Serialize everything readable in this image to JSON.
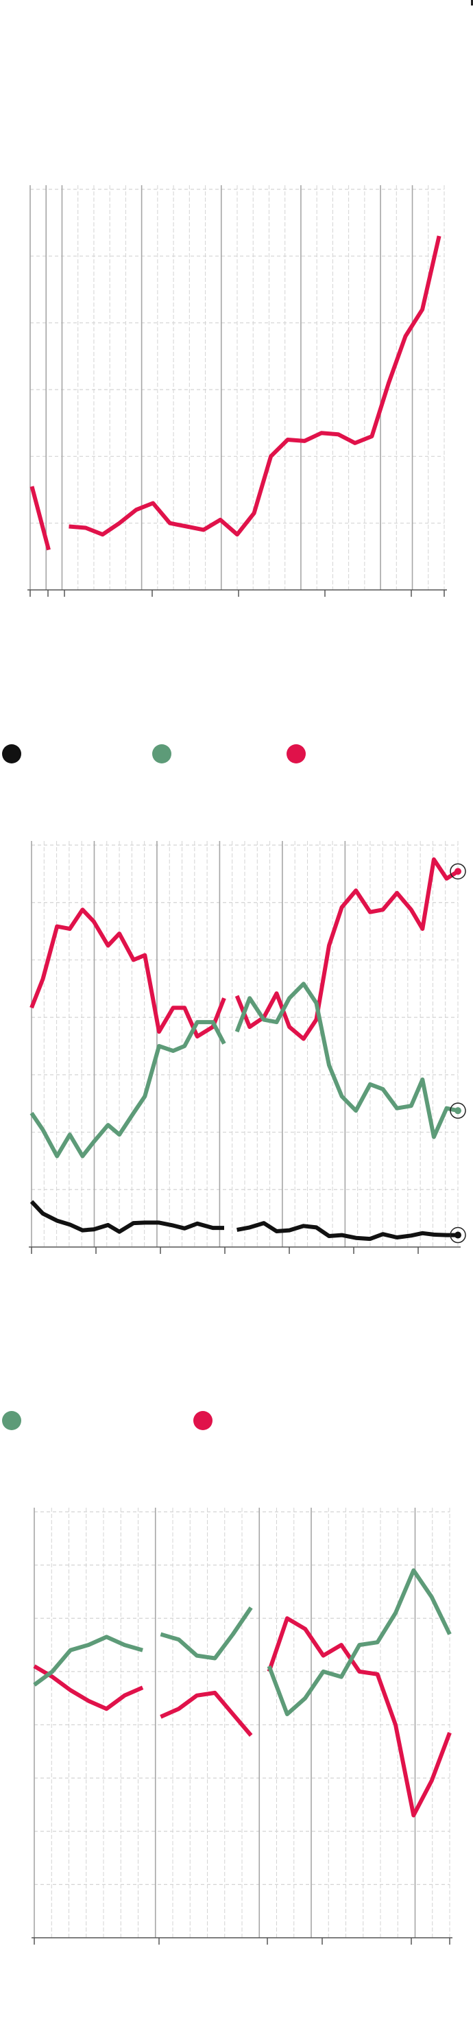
{
  "colors": {
    "red": "#e0124a",
    "green": "#5d9b78",
    "black": "#111111",
    "grid_major": "#a6a6a6",
    "grid_minor": "#d4d4d4",
    "axis": "#555555"
  },
  "chart_data": [
    {
      "type": "line",
      "title": "",
      "xlabel": "",
      "ylabel": "",
      "x_range": [
        0,
        24
      ],
      "ylim": [
        0,
        60
      ],
      "grid": true,
      "series": [
        {
          "color_key": "red",
          "segments": [
            [
              [
                -0.2,
                15.5
              ],
              [
                0.8,
                6
              ]
            ],
            [
              [
                2,
                9.5
              ],
              [
                3,
                9.3
              ],
              [
                4,
                8.3
              ],
              [
                5,
                10
              ],
              [
                6,
                12
              ],
              [
                7,
                13
              ],
              [
                8,
                10
              ],
              [
                9,
                9.5
              ],
              [
                10,
                9
              ],
              [
                11,
                10.5
              ],
              [
                12,
                8.3
              ],
              [
                13,
                11.5
              ],
              [
                14,
                20
              ],
              [
                15,
                22.5
              ],
              [
                16,
                22.3
              ],
              [
                17,
                23.5
              ],
              [
                18,
                23.3
              ],
              [
                19,
                22
              ],
              [
                20,
                23
              ],
              [
                21,
                31
              ],
              [
                22,
                38
              ],
              [
                23,
                42
              ],
              [
                24,
                53
              ]
            ]
          ]
        }
      ]
    },
    {
      "type": "line",
      "title": "",
      "xlabel": "",
      "ylabel": "",
      "x_range": [
        0,
        29
      ],
      "ylim": [
        0,
        84
      ],
      "grid": true,
      "legend": {
        "placement": "top",
        "items": [
          {
            "color_key": "black",
            "label": ""
          },
          {
            "color_key": "green",
            "label": ""
          },
          {
            "color_key": "red",
            "label": ""
          }
        ]
      },
      "series": [
        {
          "color_key": "red",
          "segments": [
            [
              [
                0,
                50
              ],
              [
                0.8,
                56
              ],
              [
                1.8,
                67
              ],
              [
                2.7,
                66.5
              ],
              [
                3.6,
                70.5
              ],
              [
                4.4,
                68
              ],
              [
                5.4,
                63
              ],
              [
                6.2,
                65.5
              ],
              [
                7.2,
                60
              ],
              [
                8,
                61
              ],
              [
                9,
                45
              ],
              [
                10,
                50
              ],
              [
                10.8,
                50
              ],
              [
                11.7,
                44
              ],
              [
                12.8,
                46
              ],
              [
                13.6,
                52
              ]
            ],
            [
              [
                14.5,
                52.5
              ],
              [
                15.4,
                46
              ],
              [
                16.4,
                48
              ],
              [
                17.3,
                53
              ],
              [
                18.2,
                46
              ],
              [
                19.2,
                43.5
              ],
              [
                20.1,
                47.5
              ],
              [
                21,
                63
              ],
              [
                21.9,
                71
              ],
              [
                22.9,
                74.5
              ],
              [
                23.9,
                70
              ],
              [
                24.8,
                70.5
              ],
              [
                25.8,
                74
              ],
              [
                26.8,
                70.5
              ],
              [
                27.6,
                66.5
              ],
              [
                28.4,
                81
              ],
              [
                29.3,
                77
              ],
              [
                30.1,
                78.5
              ]
            ]
          ]
        },
        {
          "color_key": "green",
          "segments": [
            [
              [
                0,
                28
              ],
              [
                0.8,
                24.5
              ],
              [
                1.8,
                19
              ],
              [
                2.7,
                23.5
              ],
              [
                3.6,
                19
              ],
              [
                4.4,
                22
              ],
              [
                5.4,
                25.5
              ],
              [
                6.2,
                23.5
              ],
              [
                7.2,
                28
              ],
              [
                8,
                31.5
              ],
              [
                9,
                42
              ],
              [
                10,
                41
              ],
              [
                10.8,
                42
              ],
              [
                11.7,
                47
              ],
              [
                12.8,
                47
              ],
              [
                13.6,
                42.5
              ]
            ],
            [
              [
                14.5,
                45
              ],
              [
                15.4,
                52
              ],
              [
                16.4,
                47.5
              ],
              [
                17.3,
                47
              ],
              [
                18.2,
                52
              ],
              [
                19.2,
                55
              ],
              [
                20.1,
                51
              ],
              [
                21,
                38
              ],
              [
                21.9,
                31.5
              ],
              [
                22.9,
                28.5
              ],
              [
                23.9,
                34
              ],
              [
                24.8,
                33
              ],
              [
                25.8,
                29
              ],
              [
                26.8,
                29.5
              ],
              [
                27.6,
                35
              ],
              [
                28.4,
                23
              ],
              [
                29.3,
                29
              ],
              [
                30.1,
                28.5
              ]
            ]
          ]
        },
        {
          "color_key": "black",
          "segments": [
            [
              [
                0,
                9.5
              ],
              [
                0.8,
                7
              ],
              [
                1.8,
                5.5
              ],
              [
                2.7,
                4.7
              ],
              [
                3.6,
                3.5
              ],
              [
                4.4,
                3.7
              ],
              [
                5.4,
                4.6
              ],
              [
                6.2,
                3.2
              ],
              [
                7.2,
                5
              ],
              [
                8,
                5.1
              ],
              [
                9,
                5.1
              ],
              [
                10,
                4.5
              ],
              [
                10.8,
                3.9
              ],
              [
                11.7,
                4.9
              ],
              [
                12.8,
                4
              ],
              [
                13.6,
                4
              ]
            ],
            [
              [
                14.5,
                3.6
              ],
              [
                15.4,
                4.1
              ],
              [
                16.4,
                5
              ],
              [
                17.3,
                3.3
              ],
              [
                18.2,
                3.5
              ],
              [
                19.2,
                4.4
              ],
              [
                20.1,
                4.1
              ],
              [
                21,
                2.3
              ],
              [
                21.9,
                2.5
              ],
              [
                22.9,
                1.9
              ],
              [
                23.9,
                1.7
              ],
              [
                24.8,
                2.7
              ],
              [
                25.8,
                2
              ],
              [
                26.8,
                2.4
              ],
              [
                27.6,
                2.9
              ],
              [
                28.4,
                2.6
              ],
              [
                29.3,
                2.5
              ],
              [
                30.1,
                2.5
              ]
            ]
          ]
        }
      ],
      "end_markers": [
        "red",
        "green",
        "black"
      ]
    },
    {
      "type": "line",
      "title": "",
      "xlabel": "",
      "ylabel": "",
      "x_range": [
        0,
        23
      ],
      "ylim": [
        0,
        80
      ],
      "grid": true,
      "legend": {
        "placement": "top",
        "items": [
          {
            "color_key": "green",
            "label": ""
          },
          {
            "color_key": "red",
            "label": ""
          }
        ]
      },
      "series": [
        {
          "color_key": "red",
          "segments": [
            [
              [
                0,
                51
              ],
              [
                1,
                49
              ],
              [
                2,
                46.5
              ],
              [
                3,
                44.5
              ],
              [
                4,
                43
              ],
              [
                5,
                45.5
              ],
              [
                6,
                47
              ]
            ],
            [
              [
                7,
                41.5
              ],
              [
                8,
                43
              ],
              [
                9,
                45.5
              ],
              [
                10,
                46
              ],
              [
                11,
                42
              ],
              [
                12,
                38
              ]
            ],
            [
              [
                13,
                50
              ],
              [
                14,
                60
              ],
              [
                15,
                58
              ],
              [
                16,
                53
              ],
              [
                17,
                55
              ],
              [
                18,
                50
              ],
              [
                19,
                49.5
              ],
              [
                20,
                40
              ],
              [
                21,
                23
              ],
              [
                22,
                29.5
              ],
              [
                23,
                38.5
              ]
            ]
          ]
        },
        {
          "color_key": "green",
          "segments": [
            [
              [
                0,
                47.5
              ],
              [
                1,
                50
              ],
              [
                2,
                54
              ],
              [
                3,
                55
              ],
              [
                4,
                56.5
              ],
              [
                5,
                55
              ],
              [
                6,
                54
              ]
            ],
            [
              [
                7,
                57
              ],
              [
                8,
                56
              ],
              [
                9,
                53
              ],
              [
                10,
                52.5
              ],
              [
                11,
                57
              ],
              [
                12,
                62
              ]
            ],
            [
              [
                13,
                51
              ],
              [
                14,
                42
              ],
              [
                15,
                45
              ],
              [
                16,
                50
              ],
              [
                17,
                49
              ],
              [
                18,
                55
              ],
              [
                19,
                55.5
              ],
              [
                20,
                61
              ],
              [
                21,
                69
              ],
              [
                22,
                64
              ],
              [
                23,
                57
              ]
            ]
          ]
        }
      ]
    }
  ]
}
